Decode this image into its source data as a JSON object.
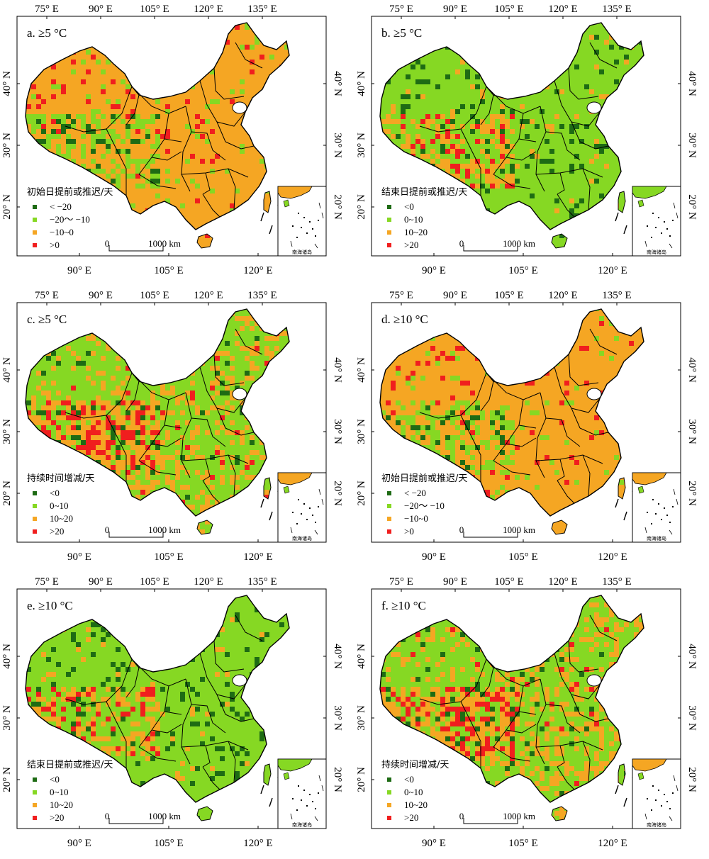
{
  "colors": {
    "dark_green": "#1e6b14",
    "light_green": "#86d823",
    "orange": "#f5a623",
    "red": "#f01e1e",
    "border": "#000000",
    "sea": "#ffffff"
  },
  "axes": {
    "top_labels": [
      "75° E",
      "90° E",
      "105° E",
      "120° E",
      "135° E"
    ],
    "bottom_labels": [
      "90° E",
      "105° E",
      "120° E"
    ],
    "lat_labels": [
      "40° N",
      "30° N",
      "20° N"
    ]
  },
  "scale_bar": {
    "zero": "0",
    "end": "1000 km"
  },
  "inset_label": "南海诸岛",
  "panels": [
    {
      "id": "a",
      "title": "a. ≥5 °C",
      "legend_title": "初始日提前或推迟/天",
      "legend": [
        {
          "label": "< −20",
          "color": "#1e6b14"
        },
        {
          "label": "−20～ −10",
          "color": "#86d823"
        },
        {
          "label": "−10~0",
          "color": "#f5a623"
        },
        {
          "label": ">0",
          "color": "#f01e1e"
        }
      ],
      "dominant": "orange"
    },
    {
      "id": "b",
      "title": "b. ≥5 °C",
      "legend_title": "结束日提前或推迟/天",
      "legend": [
        {
          "label": "<0",
          "color": "#1e6b14"
        },
        {
          "label": "0~10",
          "color": "#86d823"
        },
        {
          "label": "10~20",
          "color": "#f5a623"
        },
        {
          "label": ">20",
          "color": "#f01e1e"
        }
      ],
      "dominant": "light_green"
    },
    {
      "id": "c",
      "title": "c. ≥5 °C",
      "legend_title": "持续时间增减/天",
      "legend": [
        {
          "label": "<0",
          "color": "#1e6b14"
        },
        {
          "label": "0~10",
          "color": "#86d823"
        },
        {
          "label": "10~20",
          "color": "#f5a623"
        },
        {
          "label": ">20",
          "color": "#f01e1e"
        }
      ],
      "dominant": "mixed_green"
    },
    {
      "id": "d",
      "title": "d. ≥10 °C",
      "legend_title": "初始日提前或推迟/天",
      "legend": [
        {
          "label": "< −20",
          "color": "#1e6b14"
        },
        {
          "label": "−20～ −10",
          "color": "#86d823"
        },
        {
          "label": "−10~0",
          "color": "#f5a623"
        },
        {
          "label": ">0",
          "color": "#f01e1e"
        }
      ],
      "dominant": "orange"
    },
    {
      "id": "e",
      "title": "e. ≥10 °C",
      "legend_title": "结束日提前或推迟/天",
      "legend": [
        {
          "label": "<0",
          "color": "#1e6b14"
        },
        {
          "label": "0~10",
          "color": "#86d823"
        },
        {
          "label": "10~20",
          "color": "#f5a623"
        },
        {
          "label": ">20",
          "color": "#f01e1e"
        }
      ],
      "dominant": "light_green"
    },
    {
      "id": "f",
      "title": "f. ≥10 °C",
      "legend_title": "持续时间增减/天",
      "legend": [
        {
          "label": "<0",
          "color": "#1e6b14"
        },
        {
          "label": "0~10",
          "color": "#86d823"
        },
        {
          "label": "10~20",
          "color": "#f5a623"
        },
        {
          "label": ">20",
          "color": "#f01e1e"
        }
      ],
      "dominant": "mixed_green"
    }
  ]
}
